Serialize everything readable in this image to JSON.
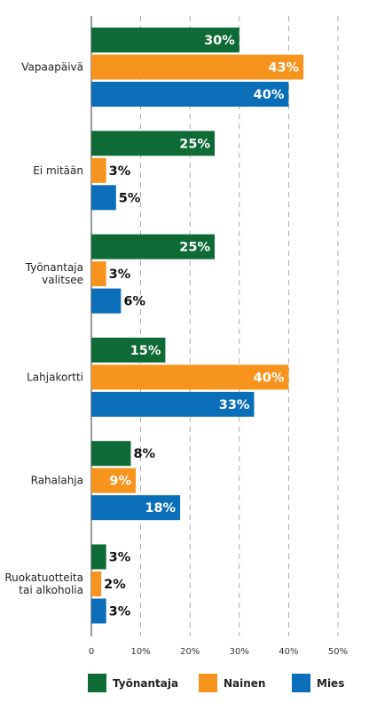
{
  "chart_data": {
    "type": "bar",
    "orientation": "horizontal",
    "categories": [
      "Vapaapäivä",
      "Ei mitään",
      [
        "Työnantaja",
        "valitsee"
      ],
      "Lahjakortti",
      "Rahalahja",
      [
        "Ruokatuotteita",
        "tai alkoholia"
      ]
    ],
    "series": [
      {
        "name": "Työnantaja",
        "color": "#0f6b35",
        "values": [
          30,
          25,
          25,
          15,
          8,
          3
        ],
        "labels": [
          "30%",
          "25%",
          "25%",
          "15%",
          "8%",
          "3%"
        ]
      },
      {
        "name": "Nainen",
        "color": "#f7941d",
        "values": [
          43,
          3,
          3,
          40,
          9,
          2
        ],
        "labels": [
          "43%",
          "3%",
          "3%",
          "40%",
          "9%",
          "2%"
        ]
      },
      {
        "name": "Mies",
        "color": "#0a6fb8",
        "values": [
          40,
          5,
          6,
          33,
          18,
          3
        ],
        "labels": [
          "40%",
          "5%",
          "6%",
          "33%",
          "18%",
          "3%"
        ]
      }
    ],
    "xlim": [
      0,
      50
    ],
    "xticks": [
      0,
      10,
      20,
      30,
      40,
      50
    ],
    "xtick_labels": [
      "0",
      "10%",
      "20%",
      "30%",
      "40%",
      "50%"
    ],
    "grid": "dashed vertical",
    "legend_position": "bottom"
  }
}
